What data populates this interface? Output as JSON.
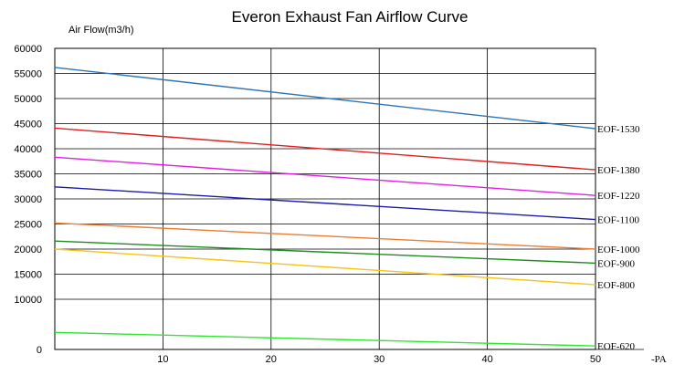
{
  "chart_data": {
    "type": "line",
    "title": "Everon Exhaust Fan Airflow Curve",
    "ylabel": "Air Flow(m3/h)",
    "xlabel": "-PA",
    "xlim": [
      0,
      50
    ],
    "ylim": [
      0,
      60000
    ],
    "x_ticks": [
      10,
      20,
      30,
      40,
      50
    ],
    "y_ticks": [
      0,
      10000,
      15000,
      20000,
      25000,
      30000,
      35000,
      40000,
      45000,
      50000,
      55000,
      60000
    ],
    "y_tick_labels": [
      "0",
      "10000",
      "15000",
      "20000",
      "25000",
      "30000",
      "35000",
      "40000",
      "45000",
      "50000",
      "55000",
      "60000"
    ],
    "grid": true,
    "legend": "labels at line ends (right)",
    "series": [
      {
        "name": "EOF-1530",
        "color": "#2e75b6",
        "x": [
          0,
          50
        ],
        "y": [
          56200,
          44000
        ]
      },
      {
        "name": "EOF-1380",
        "color": "#e02020",
        "x": [
          0,
          50
        ],
        "y": [
          44100,
          35800
        ]
      },
      {
        "name": "EOF-1220",
        "color": "#e020e0",
        "x": [
          0,
          50
        ],
        "y": [
          38300,
          30700
        ]
      },
      {
        "name": "EOF-1100",
        "color": "#1c1ca8",
        "x": [
          0,
          50
        ],
        "y": [
          32400,
          25900
        ]
      },
      {
        "name": "EOF-1000",
        "color": "#ed7d31",
        "x": [
          0,
          50
        ],
        "y": [
          25200,
          20000
        ]
      },
      {
        "name": "EOF-900",
        "color": "#1e8c1e",
        "x": [
          0,
          50
        ],
        "y": [
          21600,
          17200
        ]
      },
      {
        "name": "EOF-800",
        "color": "#f5c518",
        "x": [
          0,
          50
        ],
        "y": [
          20000,
          12900
        ]
      },
      {
        "name": "EOF-620",
        "color": "#2ee82e",
        "x": [
          0,
          50
        ],
        "y": [
          3400,
          700
        ]
      }
    ]
  }
}
